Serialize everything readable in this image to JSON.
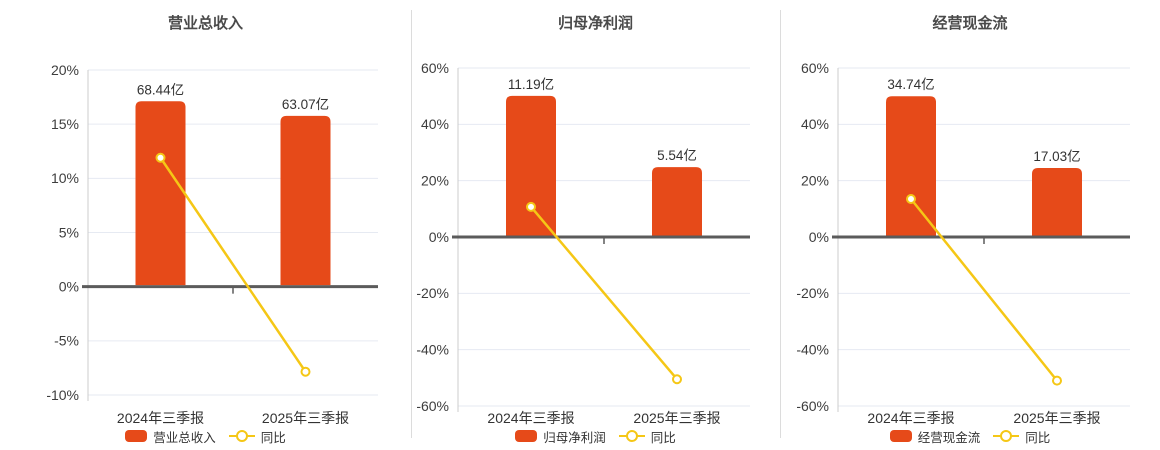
{
  "page": {
    "background": "#ffffff"
  },
  "colors": {
    "bar": "#E64A19",
    "line": "#F5C716",
    "marker_fill": "#FFFFFF",
    "grid": "#E6EAF2",
    "zero_axis": "#5B5B5B",
    "y_axis_line": "#CCCCCC",
    "tick_label": "#3D3D3D",
    "title": "#4A4A4A",
    "value_label": "#333333",
    "x_label": "#333333",
    "legend_label": "#333333",
    "divider": "#DCDCDC"
  },
  "legend": {
    "yoy_label": "同比"
  },
  "chart_data": [
    {
      "type": "bar",
      "title": "营业总收入",
      "categories": [
        "2024年三季报",
        "2025年三季报"
      ],
      "series": [
        {
          "name": "营业总收入",
          "type": "bar",
          "unit": "亿",
          "values": [
            68.44,
            63.07
          ],
          "labels": [
            "68.44亿",
            "63.07亿"
          ]
        },
        {
          "name": "同比",
          "type": "line",
          "unit": "%",
          "values": [
            11.9,
            -7.85
          ]
        }
      ],
      "y_axis": {
        "min": -10,
        "max": 20,
        "step": 5,
        "unit": "%"
      },
      "bar_scale_max": 80,
      "grid": true,
      "legend_position": "bottom"
    },
    {
      "type": "bar",
      "title": "归母净利润",
      "categories": [
        "2024年三季报",
        "2025年三季报"
      ],
      "series": [
        {
          "name": "归母净利润",
          "type": "bar",
          "unit": "亿",
          "values": [
            11.19,
            5.54
          ],
          "labels": [
            "11.19亿",
            "5.54亿"
          ]
        },
        {
          "name": "同比",
          "type": "line",
          "unit": "%",
          "values": [
            10.7,
            -50.5
          ]
        }
      ],
      "y_axis": {
        "min": -60,
        "max": 60,
        "step": 20,
        "unit": "%"
      },
      "bar_scale_max": 13.4,
      "grid": true,
      "legend_position": "bottom"
    },
    {
      "type": "bar",
      "title": "经营现金流",
      "categories": [
        "2024年三季报",
        "2025年三季报"
      ],
      "series": [
        {
          "name": "经营现金流",
          "type": "bar",
          "unit": "亿",
          "values": [
            34.74,
            17.03
          ],
          "labels": [
            "34.74亿",
            "17.03亿"
          ]
        },
        {
          "name": "同比",
          "type": "line",
          "unit": "%",
          "values": [
            13.5,
            -51.0
          ]
        }
      ],
      "y_axis": {
        "min": -60,
        "max": 60,
        "step": 20,
        "unit": "%"
      },
      "bar_scale_max": 41.7,
      "grid": true,
      "legend_position": "bottom"
    }
  ]
}
